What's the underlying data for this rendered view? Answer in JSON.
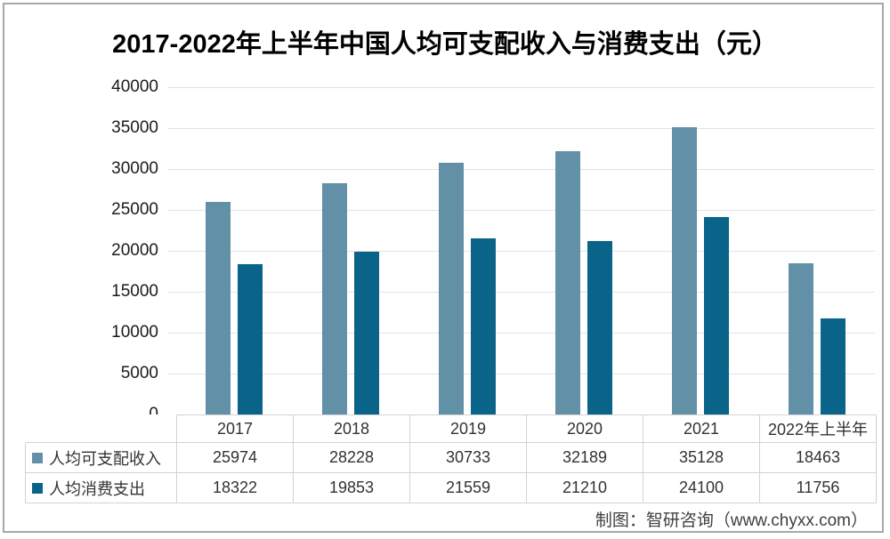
{
  "title": "2017-2022年上半年中国人均可支配收入与消费支出（元）",
  "footer_credit": "制图：智研咨询（www.chyxx.com）",
  "colors": {
    "series_income": "#6290A6",
    "series_expense": "#0A6489",
    "gridline": "#E3E3E3",
    "table_border": "#D2D2D2",
    "frame_border": "#A8A8A8",
    "text": "#333333"
  },
  "y_axis": {
    "min": 0,
    "max": 40000,
    "step": 5000,
    "tick_labels": [
      "0",
      "5000",
      "10000",
      "15000",
      "20000",
      "25000",
      "30000",
      "35000",
      "40000"
    ]
  },
  "chart_data": {
    "type": "bar",
    "title": "2017-2022年上半年中国人均可支配收入与消费支出（元）",
    "categories": [
      "2017",
      "2018",
      "2019",
      "2020",
      "2021",
      "2022年上半年"
    ],
    "series": [
      {
        "name": "人均可支配收入",
        "color": "#6290A6",
        "values": [
          25974,
          28228,
          30733,
          32189,
          35128,
          18463
        ]
      },
      {
        "name": "人均消费支出",
        "color": "#0A6489",
        "values": [
          18322,
          19853,
          21559,
          21210,
          24100,
          11756
        ]
      }
    ],
    "ylim": [
      0,
      40000
    ],
    "ytick_step": 5000,
    "grid": true,
    "legend_position": "table-rows-left",
    "xlabel": "",
    "ylabel": ""
  }
}
